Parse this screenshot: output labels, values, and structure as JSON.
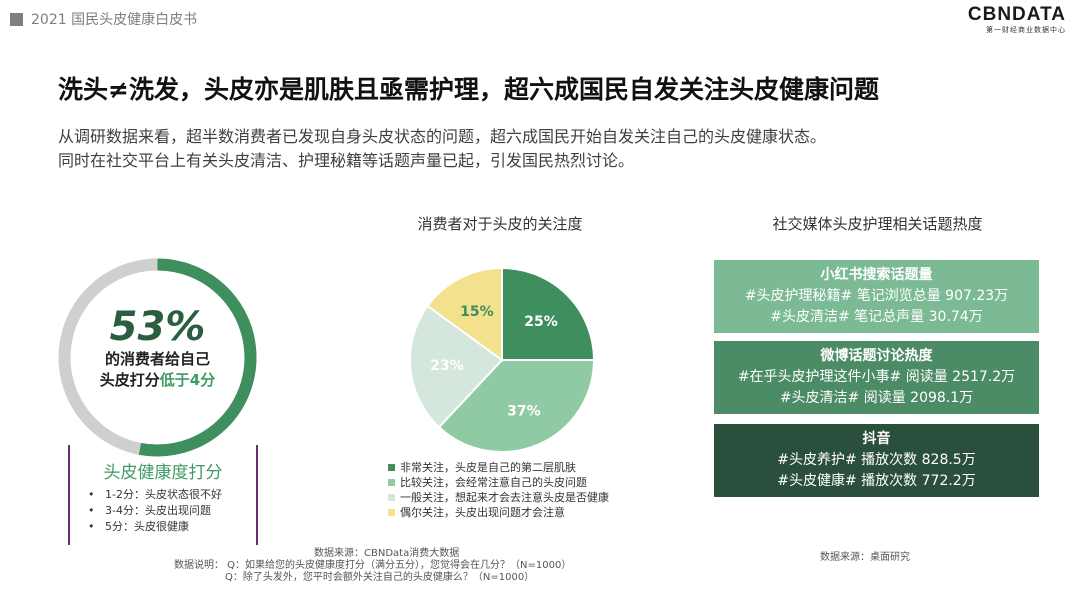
{
  "header": {
    "report_title": "2021 国民头皮健康白皮书",
    "logo_main": "CBNDATA",
    "logo_sub": "第一财经商业数据中心"
  },
  "title": "洗头≠洗发，头皮亦是肌肤且亟需护理，超六成国民自发关注头皮健康问题",
  "description": [
    "从调研数据来看，超半数消费者已发现自身头皮状态的问题，超六成国民开始自发关注自己的头皮健康状态。",
    "同时在社交平台上有关头皮清洁、护理秘籍等话题声量已起，引发国民热烈讨论。"
  ],
  "gauge": {
    "percent_label": "53%",
    "percent": 53,
    "line1": "的消费者给自己",
    "line2_prefix": "头皮打分",
    "line2_highlight": "低于4分",
    "colors": {
      "fill": "#3e8e5e",
      "track": "#cfcfcf"
    }
  },
  "score_legend": {
    "title": "头皮健康度打分",
    "items": [
      "1-2分：头皮状态很不好",
      "3-4分：头皮出现问题",
      "5分：头皮很健康"
    ]
  },
  "chart_data": {
    "type": "pie",
    "title": "消费者对于头皮的关注度",
    "slices": [
      {
        "label": "非常关注，头皮是自己的第二层肌肤",
        "value": 25,
        "display": "25%",
        "color": "#3e8e5e",
        "text_color": "#ffffff"
      },
      {
        "label": "比较关注，会经常注意自己的头皮问题",
        "value": 37,
        "display": "37%",
        "color": "#8fcaa3",
        "text_color": "#ffffff"
      },
      {
        "label": "一般关注，想起来才会去注意头皮是否健康",
        "value": 23,
        "display": "23%",
        "color": "#d5e6dc",
        "text_color": "#ffffff"
      },
      {
        "label": "偶尔关注，头皮出现问题才会注意",
        "value": 15,
        "display": "15%",
        "color": "#f3e18e",
        "text_color": "#3e8e5e"
      }
    ],
    "legend_position": "bottom"
  },
  "social": {
    "title": "社交媒体头皮护理相关话题热度",
    "cards": [
      {
        "title": "小红书搜索话题量",
        "rows": [
          "#头皮护理秘籍#  笔记浏览总量 907.23万",
          "#头皮清洁#  笔记总声量 30.74万"
        ]
      },
      {
        "title": "微博话题讨论热度",
        "rows": [
          "#在乎头皮护理这件小事# 阅读量 2517.2万",
          "#头皮清洁#   阅读量 2098.1万"
        ]
      },
      {
        "title": "抖音",
        "rows": [
          "#头皮养护#  播放次数 828.5万",
          "#头皮健康#  播放次数 772.2万"
        ]
      }
    ]
  },
  "sources": {
    "left": [
      "数据来源：CBNData消费大数据",
      "数据说明：  Q：如果给您的头皮健康度打分（满分五分），您觉得会在几分？（N=1000）",
      "Q：除了头发外，您平时会额外关注自己的头皮健康么？（N=1000）"
    ],
    "right": "数据来源：桌面研究"
  }
}
